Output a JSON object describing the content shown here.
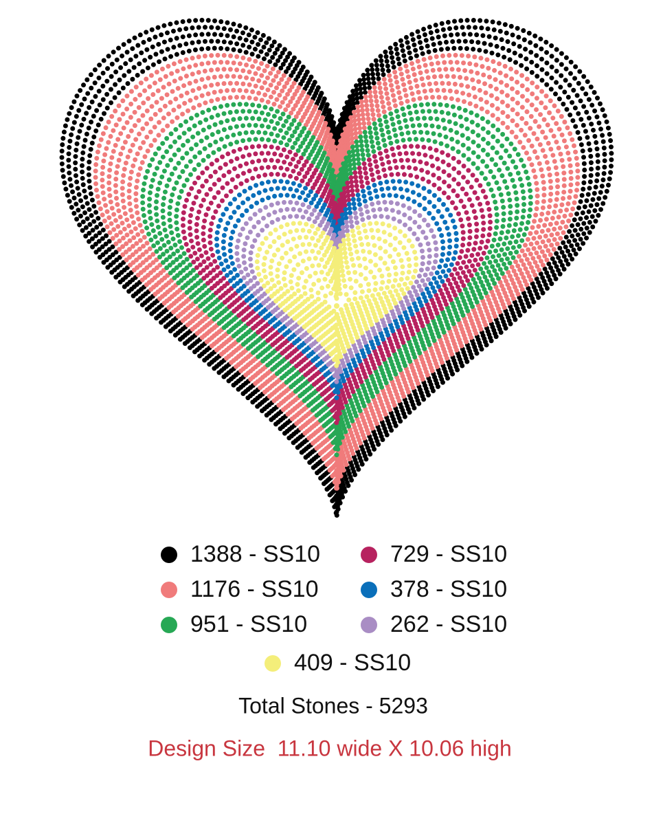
{
  "legend": [
    {
      "label": "1388 - SS10",
      "color": "#000000"
    },
    {
      "label": "1176 - SS10",
      "color": "#f07b7b"
    },
    {
      "label": "951 - SS10",
      "color": "#27a855"
    },
    {
      "label": "729 - SS10",
      "color": "#b7225f"
    },
    {
      "label": "378 - SS10",
      "color": "#0a6fba"
    },
    {
      "label": "262 - SS10",
      "color": "#a98dc4"
    },
    {
      "label": "409 - SS10",
      "color": "#f4ee7a"
    }
  ],
  "total": "Total Stones - 5293",
  "design_size": "Design Size  11.10 wide X 10.06 high",
  "design_size_color": "#c8363f"
}
